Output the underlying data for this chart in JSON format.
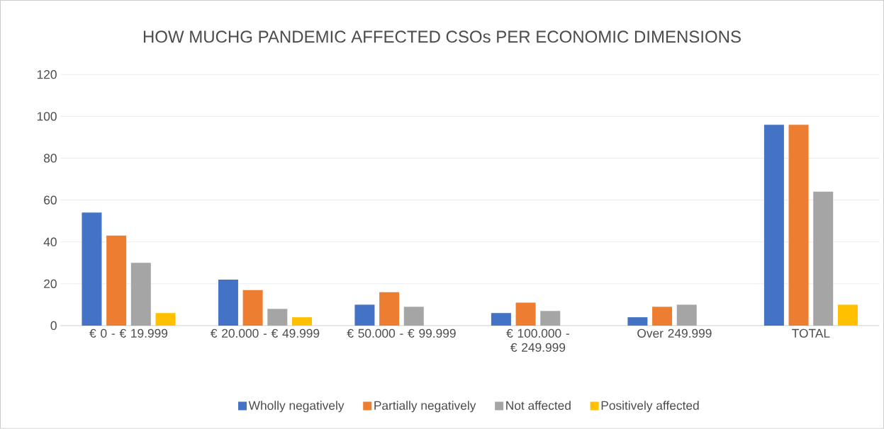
{
  "chart_data": {
    "type": "bar",
    "title": "HOW MUCHG PANDEMIC AFFECTED CSOs PER ECONOMIC DIMENSIONS",
    "categories": [
      "€ 0 - € 19.999",
      "€ 20.000 - € 49.999",
      "€ 50.000 - € 99.999",
      "€ 100.000 - € 249.999",
      "Over 249.999",
      "TOTAL"
    ],
    "series": [
      {
        "name": "Wholly negatively",
        "color": "#4472c4",
        "values": [
          54,
          22,
          10,
          6,
          4,
          96
        ]
      },
      {
        "name": "Partially negatively",
        "color": "#ed7d31",
        "values": [
          43,
          17,
          16,
          11,
          9,
          96
        ]
      },
      {
        "name": "Not affected",
        "color": "#a5a5a5",
        "values": [
          30,
          8,
          9,
          7,
          10,
          64
        ]
      },
      {
        "name": "Positively affected",
        "color": "#ffc000",
        "values": [
          6,
          4,
          0,
          0,
          0,
          10
        ]
      }
    ],
    "ylim": [
      0,
      120
    ],
    "yticks": [
      0,
      20,
      40,
      60,
      80,
      100,
      120
    ],
    "grid": "y",
    "legend": "bottom"
  }
}
